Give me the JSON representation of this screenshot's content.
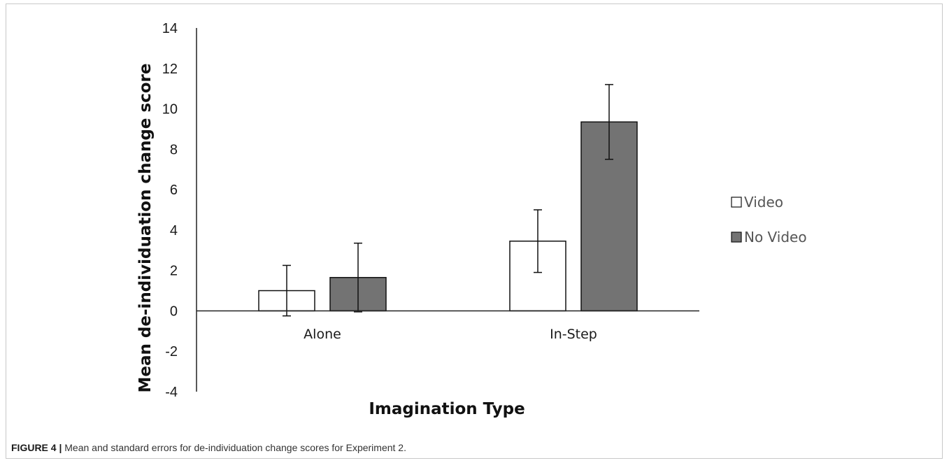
{
  "chart_data": {
    "type": "bar",
    "categories": [
      "Alone",
      "In-Step"
    ],
    "series": [
      {
        "name": "Video",
        "values": [
          1.0,
          3.45
        ],
        "errors": [
          1.25,
          1.55
        ],
        "color": "#ffffff"
      },
      {
        "name": "No Video",
        "values": [
          1.65,
          9.35
        ],
        "errors": [
          1.7,
          1.85
        ],
        "color": "#737373"
      }
    ],
    "ylim": [
      -4,
      14
    ],
    "yticks": [
      "14",
      "12",
      "10",
      "8",
      "6",
      "4",
      "2",
      "0",
      "-2",
      "-4"
    ],
    "xlabel": "Imagination Type",
    "ylabel": "Mean de-individuation change score",
    "legend_position": "right",
    "grid": false
  },
  "caption": {
    "label": "FIGURE 4 |",
    "text": " Mean and standard errors for de-individuation change scores for Experiment 2."
  }
}
